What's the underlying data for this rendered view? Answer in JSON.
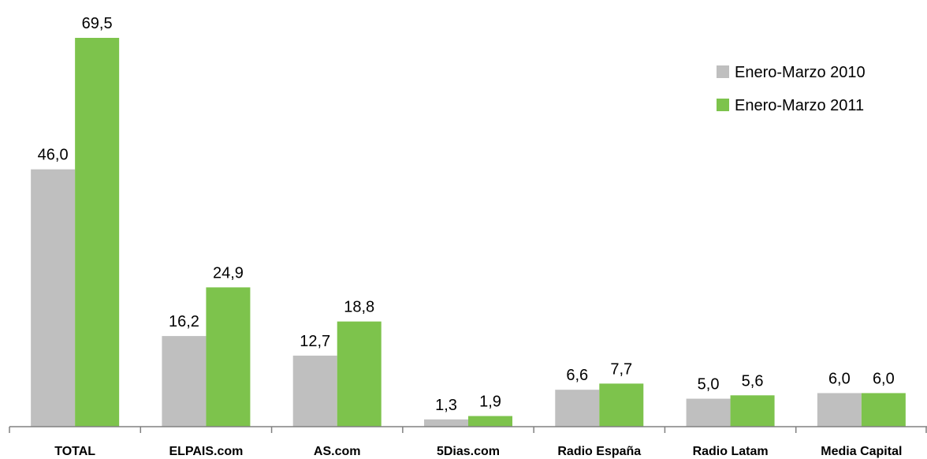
{
  "chart_data": {
    "type": "bar",
    "categories": [
      "TOTAL",
      "ELPAIS.com",
      "AS.com",
      "5Dias.com",
      "Radio España",
      "Radio Latam",
      "Media Capital"
    ],
    "series": [
      {
        "name": "Enero-Marzo 2010",
        "color": "#bfbfbf",
        "values": [
          46.0,
          16.2,
          12.7,
          1.3,
          6.6,
          5.0,
          6.0
        ],
        "labels": [
          "46,0",
          "16,2",
          "12,7",
          "1,3",
          "6,6",
          "5,0",
          "6,0"
        ]
      },
      {
        "name": "Enero-Marzo 2011",
        "color": "#7dc34c",
        "values": [
          69.5,
          24.9,
          18.8,
          1.9,
          7.7,
          5.6,
          6.0
        ],
        "labels": [
          "69,5",
          "24,9",
          "18,8",
          "1,9",
          "7,7",
          "5,6",
          "6,0"
        ]
      }
    ],
    "ylim": [
      0,
      69.5
    ],
    "grid": false,
    "legend_position": "top-right"
  }
}
